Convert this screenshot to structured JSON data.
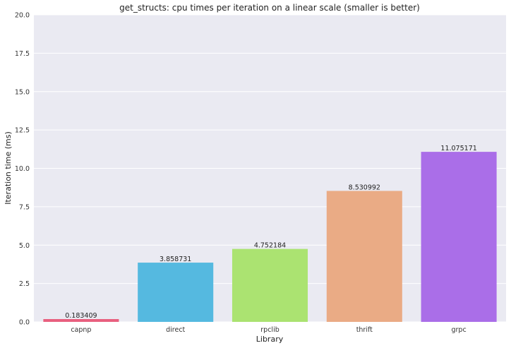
{
  "chart_data": {
    "type": "bar",
    "title": "get_structs: cpu times per iteration on a linear scale (smaller is better)",
    "xlabel": "Library",
    "ylabel": "Iteration time (ms)",
    "categories": [
      "capnp",
      "direct",
      "rpclib",
      "thrift",
      "grpc"
    ],
    "values": [
      0.183409,
      3.858731,
      4.752184,
      8.530992,
      11.075171
    ],
    "value_labels": [
      "0.183409",
      "3.858731",
      "4.752184",
      "8.530992",
      "11.075171"
    ],
    "colors": [
      "#e8607f",
      "#55b9e0",
      "#abe371",
      "#eaab85",
      "#aa6ee8"
    ],
    "ylim": [
      0,
      20
    ],
    "yticks": [
      "0.0",
      "2.5",
      "5.0",
      "7.5",
      "10.0",
      "12.5",
      "15.0",
      "17.5",
      "20.0"
    ],
    "grid": true,
    "background": "#eaeaf2"
  }
}
